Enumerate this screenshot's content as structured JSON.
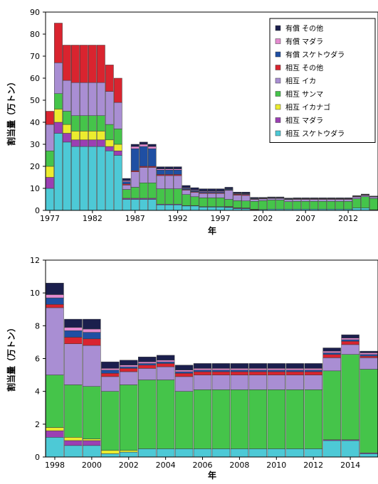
{
  "colors": {
    "paid_other": "#1b1f4d",
    "paid_cod": "#e58bd0",
    "paid_pollock": "#1f4fa3",
    "mutual_other": "#d9242f",
    "mutual_squid": "#a98ed3",
    "mutual_saury": "#45c44a",
    "mutual_sandlance": "#ecec2e",
    "mutual_cod": "#9b3fb3",
    "mutual_pollock": "#4dc9d6"
  },
  "chart_data": [
    {
      "type": "bar",
      "stacked": true,
      "ylabel": "割当量（万トン）",
      "xlabel": "年",
      "ylim": [
        0,
        90
      ],
      "yticks": [
        0,
        10,
        20,
        30,
        40,
        50,
        60,
        70,
        80,
        90
      ],
      "xticks": [
        "1977",
        "1982",
        "1987",
        "1992",
        "1997",
        "2002",
        "2007",
        "2012"
      ],
      "xlim": [
        1976.5,
        2015.5
      ],
      "grid": false,
      "legend_position": "top-right",
      "legend": [
        "有償 その他",
        "有償 マダラ",
        "有償 スケトウダラ",
        "相互 その他",
        "相互 イカ",
        "相互 サンマ",
        "相互 イカナゴ",
        "相互 マダラ",
        "相互 スケトウダラ"
      ],
      "series_keys": [
        "mutual_pollock",
        "mutual_cod",
        "mutual_sandlance",
        "mutual_saury",
        "mutual_squid",
        "mutual_other",
        "paid_pollock",
        "paid_cod",
        "paid_other"
      ],
      "x": [
        1977,
        1978,
        1979,
        1980,
        1981,
        1982,
        1983,
        1984,
        1985,
        1986,
        1987,
        1988,
        1989,
        1990,
        1991,
        1992,
        1993,
        1994,
        1995,
        1996,
        1997,
        1998,
        1999,
        2000,
        2001,
        2002,
        2003,
        2004,
        2005,
        2006,
        2007,
        2008,
        2009,
        2010,
        2011,
        2012,
        2013,
        2014,
        2015
      ],
      "values": {
        "mutual_pollock": [
          10,
          35,
          31,
          29,
          29,
          29,
          29,
          27,
          25,
          5,
          5,
          5,
          5,
          2.5,
          2.5,
          2.5,
          2,
          2,
          1.5,
          1.5,
          1.5,
          1.3,
          0.8,
          0.7,
          0.3,
          0.4,
          0.6,
          0.6,
          0.6,
          0.6,
          0.6,
          0.6,
          0.6,
          0.6,
          0.6,
          0.6,
          1.1,
          1.1,
          0.3
        ],
        "mutual_cod": [
          5,
          5,
          4,
          3,
          3,
          3,
          3,
          2,
          2,
          0.5,
          0.5,
          0.5,
          0.5,
          0.3,
          0.3,
          0.3,
          0.2,
          0.2,
          0.2,
          0.2,
          0.2,
          0.3,
          0.3,
          0.3,
          0.1,
          0,
          0,
          0,
          0,
          0,
          0,
          0,
          0,
          0,
          0,
          0,
          0,
          0,
          0
        ],
        "mutual_sandlance": [
          5,
          6,
          4,
          4,
          4,
          4,
          4,
          3,
          3,
          0,
          0,
          0,
          0,
          0,
          0,
          0,
          0,
          0,
          0,
          0,
          0,
          0.2,
          0.1,
          0.1,
          0.1,
          0,
          0,
          0,
          0,
          0,
          0,
          0,
          0,
          0,
          0,
          0,
          0,
          0,
          0
        ],
        "mutual_saury": [
          7,
          7,
          6,
          7,
          7,
          7,
          7,
          7,
          7,
          4,
          5,
          7,
          7,
          7,
          7,
          7,
          5,
          4,
          4,
          4,
          4,
          3.2,
          3.2,
          3.2,
          3.6,
          4,
          4.1,
          4.1,
          3.4,
          3.5,
          3.5,
          3.5,
          3.5,
          3.5,
          3.5,
          3.5,
          4.2,
          5.1,
          5.1
        ],
        "mutual_squid": [
          12,
          14,
          14,
          15,
          15,
          15,
          15,
          15,
          12,
          2,
          7,
          7,
          7,
          6,
          6,
          6,
          2,
          2,
          2,
          2,
          2,
          4.1,
          2.5,
          2.5,
          0.9,
          0.8,
          0.7,
          0.7,
          0.9,
          0.9,
          0.9,
          0.9,
          0.9,
          0.9,
          0.9,
          0.9,
          0.8,
          0.6,
          0.7
        ],
        "mutual_other": [
          6,
          18,
          16,
          17,
          17,
          17,
          17,
          12,
          11,
          0.5,
          0.5,
          0.5,
          0.5,
          0.5,
          0.5,
          0.5,
          0.3,
          0.3,
          0.3,
          0.3,
          0.3,
          0.2,
          0.4,
          0.4,
          0.2,
          0.2,
          0.2,
          0.2,
          0.2,
          0.2,
          0.2,
          0.2,
          0.2,
          0.2,
          0.2,
          0.2,
          0.2,
          0.2,
          0.1
        ],
        "paid_pollock": [
          0,
          0,
          0,
          0,
          0,
          0,
          0,
          0,
          0,
          1,
          10,
          9,
          8,
          2,
          2,
          2,
          0.5,
          0.5,
          0.5,
          0.5,
          0.5,
          0.3,
          0.3,
          0.3,
          0.2,
          0.1,
          0.1,
          0.1,
          0.1,
          0.1,
          0.1,
          0.1,
          0.1,
          0.1,
          0.1,
          0.1,
          0.1,
          0.1,
          0.1
        ],
        "paid_cod": [
          0,
          0,
          0,
          0,
          0,
          0,
          0,
          0,
          0,
          0.5,
          1,
          1,
          1,
          0.5,
          0.5,
          0.5,
          0.3,
          0.3,
          0.3,
          0.3,
          0.3,
          0.2,
          0.2,
          0.2,
          0.1,
          0.1,
          0.1,
          0.1,
          0.1,
          0.1,
          0.1,
          0.1,
          0.1,
          0.1,
          0.1,
          0.1,
          0.1,
          0.1,
          0.1
        ],
        "paid_other": [
          0,
          0,
          0,
          0,
          0,
          0,
          0,
          0,
          0,
          1,
          1,
          1,
          1,
          1,
          1,
          1,
          1,
          1,
          1,
          1,
          1,
          0.7,
          0.5,
          0.6,
          0.4,
          0.3,
          0.3,
          0.3,
          0.3,
          0.3,
          0.3,
          0.3,
          0.3,
          0.3,
          0.3,
          0.3,
          0.2,
          0.2,
          0.1
        ]
      }
    },
    {
      "type": "bar",
      "stacked": true,
      "ylabel": "割当量（万トン）",
      "xlabel": "年",
      "ylim": [
        0,
        12
      ],
      "yticks": [
        0,
        2,
        4,
        6,
        8,
        10,
        12
      ],
      "xticks": [
        "1998",
        "2000",
        "2002",
        "2004",
        "2006",
        "2008",
        "2010",
        "2012",
        "2014"
      ],
      "xlim": [
        1997.5,
        2015.5
      ],
      "grid": false,
      "series_keys": [
        "mutual_pollock",
        "mutual_cod",
        "mutual_sandlance",
        "mutual_saury",
        "mutual_squid",
        "mutual_other",
        "paid_pollock",
        "paid_cod",
        "paid_other"
      ],
      "x": [
        1998,
        1999,
        2000,
        2001,
        2002,
        2003,
        2004,
        2005,
        2006,
        2007,
        2008,
        2009,
        2010,
        2011,
        2012,
        2013,
        2014,
        2015
      ],
      "values": {
        "mutual_pollock": [
          1.2,
          0.7,
          0.7,
          0.2,
          0.3,
          0.5,
          0.5,
          0.5,
          0.5,
          0.5,
          0.5,
          0.5,
          0.5,
          0.5,
          0.5,
          1.0,
          1.0,
          0.2
        ],
        "mutual_cod": [
          0.4,
          0.3,
          0.3,
          0,
          0,
          0,
          0,
          0,
          0,
          0,
          0,
          0,
          0,
          0,
          0,
          0.05,
          0.05,
          0.05
        ],
        "mutual_sandlance": [
          0.2,
          0.2,
          0.1,
          0.2,
          0.1,
          0,
          0,
          0,
          0,
          0,
          0,
          0,
          0,
          0,
          0,
          0,
          0,
          0
        ],
        "mutual_saury": [
          3.2,
          3.2,
          3.2,
          3.6,
          4.0,
          4.2,
          4.2,
          3.5,
          3.6,
          3.6,
          3.6,
          3.6,
          3.6,
          3.6,
          3.6,
          4.2,
          5.2,
          5.1
        ],
        "mutual_squid": [
          4.1,
          2.5,
          2.5,
          0.9,
          0.8,
          0.7,
          0.8,
          0.9,
          0.9,
          0.9,
          0.9,
          0.9,
          0.9,
          0.9,
          0.9,
          0.8,
          0.6,
          0.7
        ],
        "mutual_other": [
          0.2,
          0.4,
          0.4,
          0.2,
          0.2,
          0.2,
          0.2,
          0.2,
          0.2,
          0.2,
          0.2,
          0.2,
          0.2,
          0.2,
          0.2,
          0.2,
          0.2,
          0.1
        ],
        "paid_pollock": [
          0.4,
          0.4,
          0.4,
          0.2,
          0.1,
          0.1,
          0.1,
          0.1,
          0.1,
          0.1,
          0.1,
          0.1,
          0.1,
          0.1,
          0.1,
          0.1,
          0.1,
          0.1
        ],
        "paid_cod": [
          0.2,
          0.2,
          0.2,
          0.1,
          0.1,
          0.1,
          0.1,
          0.1,
          0.1,
          0.1,
          0.1,
          0.1,
          0.1,
          0.1,
          0.1,
          0.1,
          0.1,
          0.1
        ],
        "paid_other": [
          0.7,
          0.5,
          0.6,
          0.4,
          0.3,
          0.3,
          0.3,
          0.3,
          0.3,
          0.3,
          0.3,
          0.3,
          0.3,
          0.3,
          0.3,
          0.2,
          0.2,
          0.1
        ]
      }
    }
  ]
}
